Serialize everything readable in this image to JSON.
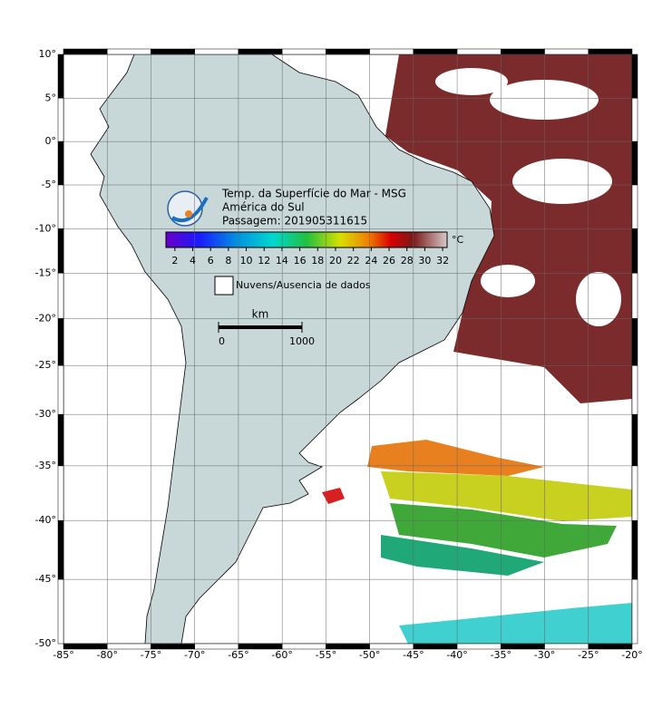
{
  "header": {
    "lines": [
      "Temp. da Superfície do Mar - MSG",
      "América do Sul",
      "Passagem: 201905311615"
    ]
  },
  "colorbar": {
    "range": [
      1,
      32.5
    ],
    "ticks": [
      2,
      4,
      6,
      8,
      10,
      12,
      14,
      16,
      18,
      20,
      22,
      24,
      26,
      28,
      30,
      32
    ],
    "unit": "°C"
  },
  "legend": {
    "label": "Nuvens/Ausencia de dados"
  },
  "scale_bar": {
    "unit": "km",
    "ticks": [
      0,
      1000
    ]
  },
  "map": {
    "lon_range": [
      -85,
      -20
    ],
    "lat_range": [
      10,
      -50
    ],
    "lon_ticks": [
      {
        "value": -85,
        "label": "-85°"
      },
      {
        "value": -80,
        "label": "-80°"
      },
      {
        "value": -75,
        "label": "-75°"
      },
      {
        "value": -70,
        "label": "-70°"
      },
      {
        "value": -65,
        "label": "-65°"
      },
      {
        "value": -60,
        "label": "-60°"
      },
      {
        "value": -55,
        "label": "-55°"
      },
      {
        "value": -50,
        "label": "-50°"
      },
      {
        "value": -45,
        "label": "-45°"
      },
      {
        "value": -40,
        "label": "-40°"
      },
      {
        "value": -35,
        "label": "-35°"
      },
      {
        "value": -30,
        "label": "-30°"
      },
      {
        "value": -25,
        "label": "-25°"
      },
      {
        "value": -20,
        "label": "-20°"
      }
    ],
    "lat_ticks": [
      {
        "value": 10,
        "label": "10°"
      },
      {
        "value": 5,
        "label": "5°"
      },
      {
        "value": 0,
        "label": "0°"
      },
      {
        "value": -5,
        "label": "-5°"
      },
      {
        "value": -10,
        "label": "-10°"
      },
      {
        "value": -15,
        "label": "-15°"
      },
      {
        "value": -20,
        "label": "-20°"
      },
      {
        "value": -25,
        "label": "-25°"
      },
      {
        "value": -30,
        "label": "-30°"
      },
      {
        "value": -35,
        "label": "-35°"
      },
      {
        "value": -40,
        "label": "-40°"
      },
      {
        "value": -45,
        "label": "-45°"
      },
      {
        "value": -50,
        "label": "-50°"
      }
    ]
  }
}
